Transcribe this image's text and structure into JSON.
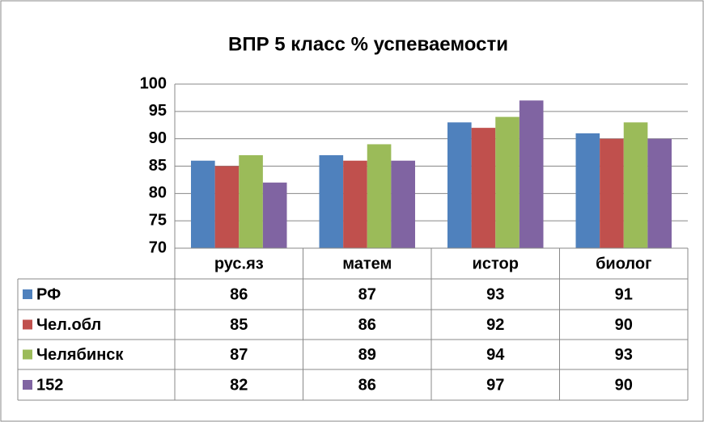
{
  "chart_data": {
    "type": "bar",
    "title": "ВПР 5 класс % успеваемости",
    "categories": [
      "рус.яз",
      "матем",
      "истор",
      "биолог"
    ],
    "series": [
      {
        "name": "РФ",
        "color": "#4f81bd",
        "values": [
          86,
          87,
          93,
          91
        ]
      },
      {
        "name": "Чел.обл",
        "color": "#c0504d",
        "values": [
          85,
          86,
          92,
          90
        ]
      },
      {
        "name": "Челябинск",
        "color": "#9bbb59",
        "values": [
          87,
          89,
          94,
          93
        ]
      },
      {
        "name": "152",
        "color": "#8064a2",
        "values": [
          82,
          86,
          97,
          90
        ]
      }
    ],
    "ylim": [
      70,
      100
    ],
    "yticks": [
      70,
      75,
      80,
      85,
      90,
      95,
      100
    ],
    "grid": true
  }
}
